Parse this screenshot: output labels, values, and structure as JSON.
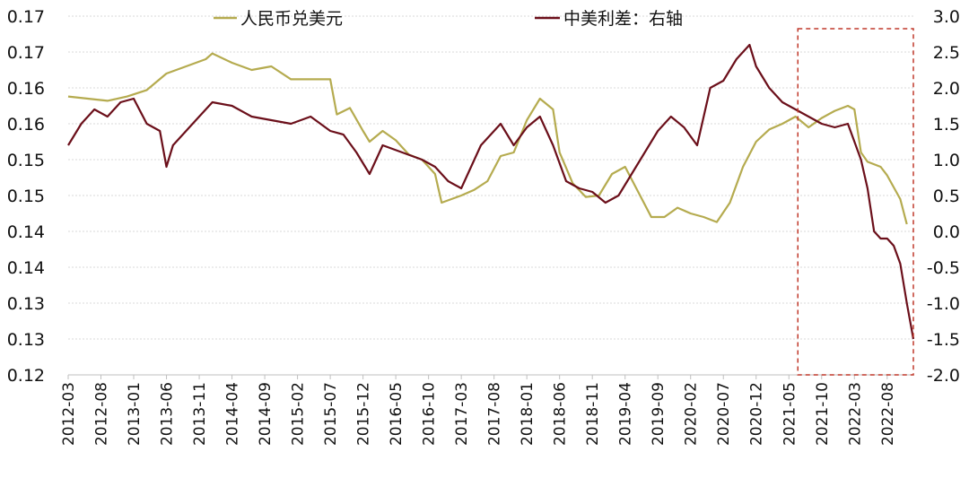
{
  "chart_data": {
    "type": "line",
    "x_tick_labels": [
      "2012-03",
      "2012-08",
      "2013-01",
      "2013-06",
      "2013-11",
      "2014-04",
      "2014-09",
      "2015-02",
      "2015-07",
      "2015-12",
      "2016-05",
      "2016-10",
      "2017-03",
      "2017-08",
      "2018-01",
      "2018-06",
      "2018-11",
      "2019-04",
      "2019-09",
      "2020-02",
      "2020-07",
      "2020-12",
      "2021-05",
      "2021-10",
      "2022-03",
      "2022-08"
    ],
    "y_left_tick_labels": [
      "0.17",
      "0.17",
      "0.16",
      "0.16",
      "0.15",
      "0.15",
      "0.14",
      "0.14",
      "0.13",
      "0.13",
      "0.12"
    ],
    "y_left_ticks": [
      0.17,
      0.165,
      0.16,
      0.155,
      0.15,
      0.145,
      0.14,
      0.135,
      0.13,
      0.125,
      0.12
    ],
    "y_left_range": [
      0.12,
      0.17
    ],
    "y_right_tick_labels": [
      "3.0",
      "2.5",
      "2.0",
      "1.5",
      "1.0",
      "0.5",
      "0.0",
      "-0.5",
      "-1.0",
      "-1.5",
      "-2.0"
    ],
    "y_right_range": [
      -2.0,
      3.0
    ],
    "x_range": [
      "2012-03",
      "2022-12"
    ],
    "grid": true,
    "legend_position": "top",
    "series": [
      {
        "name": "人民币兑美元",
        "axis": "left",
        "color": "#b5ab4f",
        "x": [
          "2012-03",
          "2012-06",
          "2012-09",
          "2012-12",
          "2013-03",
          "2013-06",
          "2013-09",
          "2013-12",
          "2014-01",
          "2014-04",
          "2014-07",
          "2014-10",
          "2015-01",
          "2015-04",
          "2015-07",
          "2015-08",
          "2015-10",
          "2015-12",
          "2016-01",
          "2016-03",
          "2016-05",
          "2016-07",
          "2016-09",
          "2016-11",
          "2016-12",
          "2017-03",
          "2017-05",
          "2017-07",
          "2017-09",
          "2017-11",
          "2018-01",
          "2018-03",
          "2018-05",
          "2018-06",
          "2018-08",
          "2018-10",
          "2018-12",
          "2019-02",
          "2019-04",
          "2019-06",
          "2019-08",
          "2019-10",
          "2019-12",
          "2020-02",
          "2020-04",
          "2020-06",
          "2020-08",
          "2020-10",
          "2020-12",
          "2021-02",
          "2021-04",
          "2021-06",
          "2021-08",
          "2021-10",
          "2021-12",
          "2022-02",
          "2022-03",
          "2022-04",
          "2022-05",
          "2022-07",
          "2022-08",
          "2022-10",
          "2022-11"
        ],
        "values": [
          0.1588,
          0.1585,
          0.1582,
          0.1588,
          0.1597,
          0.162,
          0.163,
          0.164,
          0.1648,
          0.1635,
          0.1625,
          0.163,
          0.1612,
          0.1612,
          0.1612,
          0.1563,
          0.1572,
          0.154,
          0.1525,
          0.154,
          0.1527,
          0.1507,
          0.15,
          0.148,
          0.144,
          0.145,
          0.1458,
          0.147,
          0.1505,
          0.151,
          0.1555,
          0.1585,
          0.157,
          0.151,
          0.1467,
          0.1448,
          0.145,
          0.148,
          0.149,
          0.1455,
          0.142,
          0.142,
          0.1433,
          0.1425,
          0.142,
          0.1413,
          0.144,
          0.149,
          0.1525,
          0.1542,
          0.155,
          0.156,
          0.1545,
          0.1558,
          0.1568,
          0.1575,
          0.157,
          0.151,
          0.1497,
          0.149,
          0.1478,
          0.1445,
          0.141
        ]
      },
      {
        "name": "中美利差：右轴",
        "axis": "right",
        "color": "#6b0f1a",
        "x": [
          "2012-03",
          "2012-05",
          "2012-07",
          "2012-09",
          "2012-11",
          "2013-01",
          "2013-03",
          "2013-05",
          "2013-06",
          "2013-07",
          "2013-09",
          "2013-11",
          "2014-01",
          "2014-04",
          "2014-07",
          "2014-10",
          "2015-01",
          "2015-04",
          "2015-07",
          "2015-09",
          "2015-11",
          "2016-01",
          "2016-03",
          "2016-06",
          "2016-09",
          "2016-11",
          "2017-01",
          "2017-03",
          "2017-06",
          "2017-09",
          "2017-11",
          "2018-01",
          "2018-03",
          "2018-05",
          "2018-07",
          "2018-09",
          "2018-11",
          "2019-01",
          "2019-03",
          "2019-05",
          "2019-07",
          "2019-09",
          "2019-11",
          "2020-01",
          "2020-03",
          "2020-05",
          "2020-07",
          "2020-09",
          "2020-11",
          "2020-12",
          "2021-02",
          "2021-04",
          "2021-06",
          "2021-08",
          "2021-10",
          "2021-12",
          "2022-02",
          "2022-04",
          "2022-05",
          "2022-06",
          "2022-07",
          "2022-08",
          "2022-09",
          "2022-10",
          "2022-11",
          "2022-12"
        ],
        "values": [
          1.2,
          1.5,
          1.7,
          1.6,
          1.8,
          1.85,
          1.5,
          1.4,
          0.9,
          1.2,
          1.4,
          1.6,
          1.8,
          1.75,
          1.6,
          1.55,
          1.5,
          1.6,
          1.4,
          1.35,
          1.1,
          0.8,
          1.2,
          1.1,
          1.0,
          0.9,
          0.7,
          0.6,
          1.2,
          1.5,
          1.2,
          1.45,
          1.6,
          1.2,
          0.7,
          0.6,
          0.55,
          0.4,
          0.5,
          0.8,
          1.1,
          1.4,
          1.6,
          1.45,
          1.2,
          2.0,
          2.1,
          2.4,
          2.6,
          2.3,
          2.0,
          1.8,
          1.7,
          1.6,
          1.5,
          1.45,
          1.5,
          1.0,
          0.6,
          0.0,
          -0.1,
          -0.1,
          -0.2,
          -0.45,
          -1.0,
          -1.5
        ]
      }
    ]
  },
  "legend": {
    "rmb_label": "人民币兑美元",
    "spread_label": "中美利差：右轴"
  },
  "colors": {
    "rmb": "#b5ab4f",
    "spread": "#6b0f1a",
    "highlight_box": "#c0392b"
  },
  "highlight_box": {
    "from": "2021-05",
    "to": "2022-12"
  }
}
